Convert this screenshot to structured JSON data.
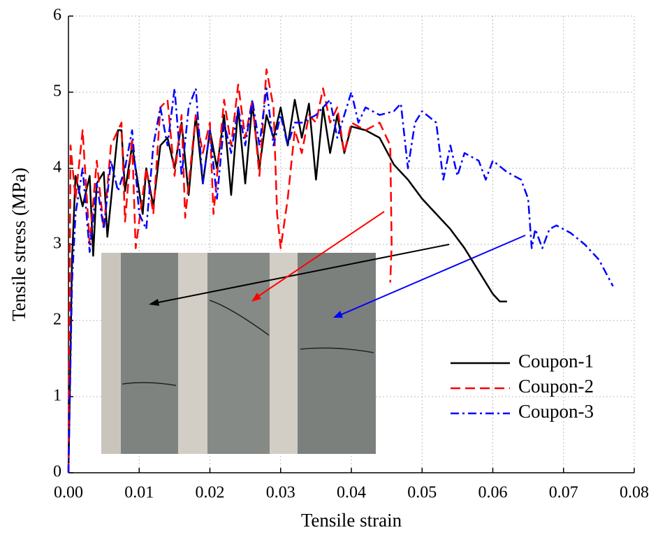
{
  "chart_data": {
    "type": "line",
    "xlabel": "Tensile strain",
    "ylabel": "Tensile stress (MPa)",
    "xlim": [
      0,
      0.08
    ],
    "ylim": [
      0,
      6
    ],
    "xticks": [
      {
        "value": 0,
        "label": "0.00"
      },
      {
        "value": 0.01,
        "label": "0.01"
      },
      {
        "value": 0.02,
        "label": "0.02"
      },
      {
        "value": 0.03,
        "label": "0.03"
      },
      {
        "value": 0.04,
        "label": "0.04"
      },
      {
        "value": 0.05,
        "label": "0.05"
      },
      {
        "value": 0.06,
        "label": "0.06"
      },
      {
        "value": 0.07,
        "label": "0.07"
      },
      {
        "value": 0.08,
        "label": "0.08"
      }
    ],
    "yticks": [
      0,
      1,
      2,
      3,
      4,
      5,
      6
    ],
    "grid": true,
    "legend": "lower right",
    "series": [
      {
        "name": "Coupon-1",
        "color": "#000000",
        "linestyle": "solid",
        "x": [
          0,
          0.0005,
          0.001,
          0.002,
          0.003,
          0.0035,
          0.004,
          0.005,
          0.0055,
          0.007,
          0.0075,
          0.008,
          0.009,
          0.0105,
          0.011,
          0.012,
          0.013,
          0.014,
          0.015,
          0.016,
          0.017,
          0.018,
          0.019,
          0.02,
          0.021,
          0.022,
          0.023,
          0.024,
          0.025,
          0.026,
          0.027,
          0.028,
          0.029,
          0.03,
          0.031,
          0.032,
          0.033,
          0.034,
          0.035,
          0.036,
          0.037,
          0.038,
          0.039,
          0.04,
          0.042,
          0.044,
          0.046,
          0.048,
          0.05,
          0.052,
          0.054,
          0.056,
          0.058,
          0.06,
          0.061,
          0.062
        ],
        "values": [
          0,
          2.8,
          3.9,
          3.5,
          3.9,
          2.85,
          3.8,
          3.95,
          3.1,
          4.5,
          4.5,
          3.7,
          4.3,
          3.4,
          4.0,
          3.5,
          4.3,
          4.4,
          4.0,
          4.6,
          3.65,
          4.7,
          3.8,
          4.5,
          4.0,
          4.7,
          3.65,
          4.8,
          3.8,
          4.85,
          4.0,
          4.7,
          4.4,
          4.8,
          4.3,
          4.9,
          4.4,
          4.85,
          3.85,
          4.8,
          4.2,
          4.7,
          4.2,
          4.55,
          4.5,
          4.4,
          4.05,
          3.85,
          3.6,
          3.4,
          3.2,
          2.95,
          2.65,
          2.35,
          2.25,
          2.25
        ]
      },
      {
        "name": "Coupon-2",
        "color": "#ff0000",
        "linestyle": "dashed",
        "x": [
          0,
          0.0003,
          0.001,
          0.002,
          0.003,
          0.004,
          0.005,
          0.006,
          0.0075,
          0.008,
          0.009,
          0.0095,
          0.011,
          0.012,
          0.013,
          0.014,
          0.015,
          0.016,
          0.0165,
          0.018,
          0.019,
          0.02,
          0.0205,
          0.022,
          0.023,
          0.024,
          0.025,
          0.026,
          0.027,
          0.028,
          0.029,
          0.0295,
          0.03,
          0.031,
          0.032,
          0.033,
          0.034,
          0.035,
          0.036,
          0.037,
          0.038,
          0.039,
          0.04,
          0.042,
          0.044,
          0.0455,
          0.0457,
          0.0455
        ],
        "values": [
          0,
          4.3,
          3.6,
          4.5,
          3.0,
          4.1,
          3.2,
          4.3,
          4.6,
          3.3,
          4.4,
          2.95,
          4.0,
          3.4,
          4.8,
          4.9,
          3.9,
          4.7,
          3.35,
          4.7,
          4.2,
          4.6,
          3.4,
          4.9,
          4.3,
          5.1,
          4.4,
          4.9,
          3.9,
          5.3,
          4.8,
          3.4,
          2.95,
          3.6,
          4.5,
          4.2,
          4.7,
          4.6,
          5.05,
          4.6,
          4.8,
          4.2,
          4.6,
          4.5,
          4.6,
          4.3,
          3.0,
          2.5
        ]
      },
      {
        "name": "Coupon-3",
        "color": "#0000ff",
        "linestyle": "dashdot",
        "x": [
          0,
          0.0005,
          0.001,
          0.002,
          0.003,
          0.004,
          0.005,
          0.006,
          0.007,
          0.008,
          0.009,
          0.01,
          0.011,
          0.012,
          0.013,
          0.014,
          0.015,
          0.016,
          0.017,
          0.018,
          0.019,
          0.02,
          0.021,
          0.022,
          0.023,
          0.024,
          0.025,
          0.026,
          0.027,
          0.028,
          0.029,
          0.03,
          0.031,
          0.032,
          0.033,
          0.035,
          0.037,
          0.038,
          0.04,
          0.041,
          0.042,
          0.044,
          0.046,
          0.047,
          0.048,
          0.049,
          0.05,
          0.052,
          0.053,
          0.054,
          0.055,
          0.056,
          0.058,
          0.059,
          0.06,
          0.062,
          0.064,
          0.065,
          0.0655,
          0.066,
          0.067,
          0.068,
          0.069,
          0.071,
          0.073,
          0.075,
          0.077
        ],
        "values": [
          0,
          2.5,
          3.4,
          4.0,
          2.9,
          3.8,
          3.2,
          4.1,
          3.7,
          4.0,
          4.5,
          3.4,
          3.2,
          4.3,
          4.8,
          4.3,
          5.05,
          3.9,
          4.8,
          5.05,
          3.8,
          4.5,
          3.6,
          4.6,
          4.2,
          4.8,
          4.3,
          4.9,
          4.3,
          5.05,
          4.3,
          4.7,
          4.3,
          4.6,
          4.6,
          4.7,
          4.9,
          4.4,
          5.0,
          4.6,
          4.8,
          4.7,
          4.75,
          4.85,
          4.0,
          4.6,
          4.75,
          4.6,
          3.85,
          4.3,
          3.9,
          4.2,
          4.1,
          3.85,
          4.1,
          3.95,
          3.85,
          3.6,
          2.95,
          3.2,
          2.95,
          3.2,
          3.25,
          3.15,
          3.0,
          2.8,
          2.45
        ]
      }
    ]
  }
}
